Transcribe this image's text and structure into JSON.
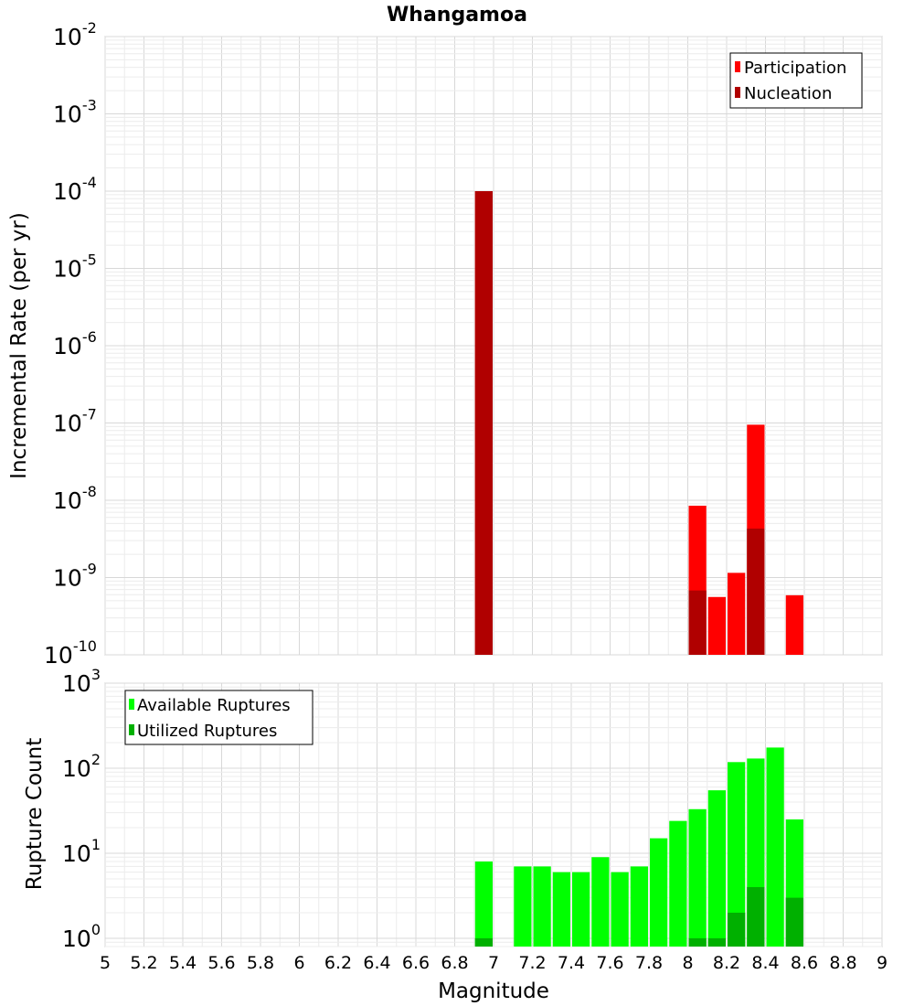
{
  "chart_data": [
    {
      "type": "bar",
      "title": "Whangamoa",
      "xlabel": "",
      "ylabel": "Incremental Rate (per yr)",
      "yscale": "log",
      "ylim": [
        1e-10,
        0.01
      ],
      "xlim": [
        5,
        9
      ],
      "bar_width": 0.1,
      "legend_position": "top-right",
      "series": [
        {
          "name": "Participation",
          "color": "#ff0000",
          "x": [
            6.95,
            8.05,
            8.15,
            8.25,
            8.35,
            8.55
          ],
          "values": [
            0.0001,
            8.5e-09,
            5.6e-10,
            1.15e-09,
            9.5e-08,
            5.9e-10
          ]
        },
        {
          "name": "Nucleation",
          "color": "#b00000",
          "x": [
            6.95,
            8.05,
            8.35
          ],
          "values": [
            0.0001,
            6.8e-10,
            4.3e-09
          ]
        }
      ],
      "yticks": [
        {
          "base": "10",
          "exp": "-2"
        },
        {
          "base": "10",
          "exp": "-3"
        },
        {
          "base": "10",
          "exp": "-4"
        },
        {
          "base": "10",
          "exp": "-5"
        },
        {
          "base": "10",
          "exp": "-6"
        },
        {
          "base": "10",
          "exp": "-7"
        },
        {
          "base": "10",
          "exp": "-8"
        },
        {
          "base": "10",
          "exp": "-9"
        },
        {
          "base": "10",
          "exp": "-10"
        }
      ]
    },
    {
      "type": "bar",
      "title": "",
      "xlabel": "Magnitude",
      "ylabel": "Rupture Count",
      "yscale": "log",
      "ylim": [
        0.8,
        1000
      ],
      "xlim": [
        5,
        9
      ],
      "bar_width": 0.1,
      "legend_position": "top-left",
      "series": [
        {
          "name": "Available Ruptures",
          "color": "#00ff00",
          "x": [
            6.95,
            7.15,
            7.25,
            7.35,
            7.45,
            7.55,
            7.65,
            7.75,
            7.85,
            7.95,
            8.05,
            8.15,
            8.25,
            8.35,
            8.45,
            8.55
          ],
          "values": [
            8,
            7,
            7,
            6,
            6,
            9,
            6,
            7,
            15,
            24,
            33,
            55,
            118,
            130,
            175,
            25
          ]
        },
        {
          "name": "Utilized Ruptures",
          "color": "#00b000",
          "x": [
            6.95,
            8.05,
            8.15,
            8.25,
            8.35,
            8.55
          ],
          "values": [
            1,
            1,
            1,
            2,
            4,
            3
          ]
        }
      ],
      "yticks": [
        {
          "base": "10",
          "exp": "3"
        },
        {
          "base": "10",
          "exp": "2"
        },
        {
          "base": "10",
          "exp": "1"
        },
        {
          "base": "10",
          "exp": "0"
        }
      ]
    }
  ],
  "x_tick_labels": [
    "5",
    "5.2",
    "5.4",
    "5.6",
    "5.8",
    "6",
    "6.2",
    "6.4",
    "6.6",
    "6.8",
    "7",
    "7.2",
    "7.4",
    "7.6",
    "7.8",
    "8",
    "8.2",
    "8.4",
    "8.6",
    "8.8",
    "9"
  ]
}
